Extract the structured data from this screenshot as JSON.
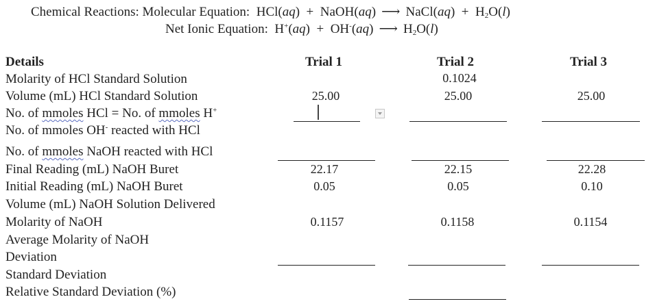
{
  "equations": {
    "molecular": {
      "label": "Chemical Reactions:  Molecular Equation:",
      "r1": "HCl(",
      "r1_phase": "aq",
      "r1_close": ")",
      "plus1": "+",
      "r2": "NaOH(",
      "r2_phase": "aq",
      "r2_close": ")",
      "arrow": "⟶",
      "p1": "NaCl(",
      "p1_phase": "aq",
      "p1_close": ")",
      "plus2": "+",
      "p2_a": "H",
      "p2_sub": "2",
      "p2_b": "O(",
      "p2_phase": "l",
      "p2_close": ")"
    },
    "net_ionic": {
      "label": "Net Ionic Equation:",
      "r1": "H",
      "r1_sup": "+",
      "r1_open": "(",
      "r1_phase": "aq",
      "r1_close": ")",
      "plus": "+",
      "r2": "OH",
      "r2_sup": "-",
      "r2_open": "(",
      "r2_phase": "aq",
      "r2_close": ")",
      "arrow": "⟶",
      "p_a": "H",
      "p_sub": "2",
      "p_b": "O(",
      "p_phase": "l",
      "p_close": ")"
    }
  },
  "table": {
    "headers": {
      "details": "Details",
      "trial1": "Trial 1",
      "trial2": "Trial 2",
      "trial3": "Trial 3"
    },
    "rows": {
      "molarity_hcl": {
        "label": "Molarity of HCl Standard Solution",
        "trial2": "0.1024"
      },
      "volume_hcl": {
        "label": "Volume (mL) HCl Standard Solution",
        "trial1": "25.00",
        "trial2": "25.00",
        "trial3": "25.00"
      },
      "mmoles_hcl": {
        "label_a": "No. of ",
        "label_b": "mmoles",
        "label_c": " HCl = No. of ",
        "label_d": "mmoles",
        "label_e": " H",
        "label_sup": "+"
      },
      "mmoles_oh": {
        "label_a": "No. of mmoles OH",
        "label_sup": "-",
        "label_b": " reacted with HCl"
      },
      "mmoles_naoh": {
        "label_a": "No. of ",
        "label_b": "mmoles",
        "label_c": " NaOH reacted with HCl"
      },
      "final_reading": {
        "label": "Final Reading (mL) NaOH Buret",
        "trial1": "22.17",
        "trial2": "22.15",
        "trial3": "22.28"
      },
      "initial_reading": {
        "label": "Initial Reading (mL) NaOH Buret",
        "trial1": "0.05",
        "trial2": "0.05",
        "trial3": "0.10"
      },
      "volume_delivered": {
        "label": "Volume (mL) NaOH Solution Delivered"
      },
      "molarity_naoh": {
        "label": "Molarity of NaOH",
        "trial1": "0.1157",
        "trial2": "0.1158",
        "trial3": "0.1154"
      },
      "avg_molarity": {
        "label": "Average Molarity of NaOH"
      },
      "deviation": {
        "label": "Deviation"
      },
      "std_dev": {
        "label": "Standard Deviation"
      },
      "rsd": {
        "label": "Relative Standard Deviation (%)"
      }
    }
  }
}
